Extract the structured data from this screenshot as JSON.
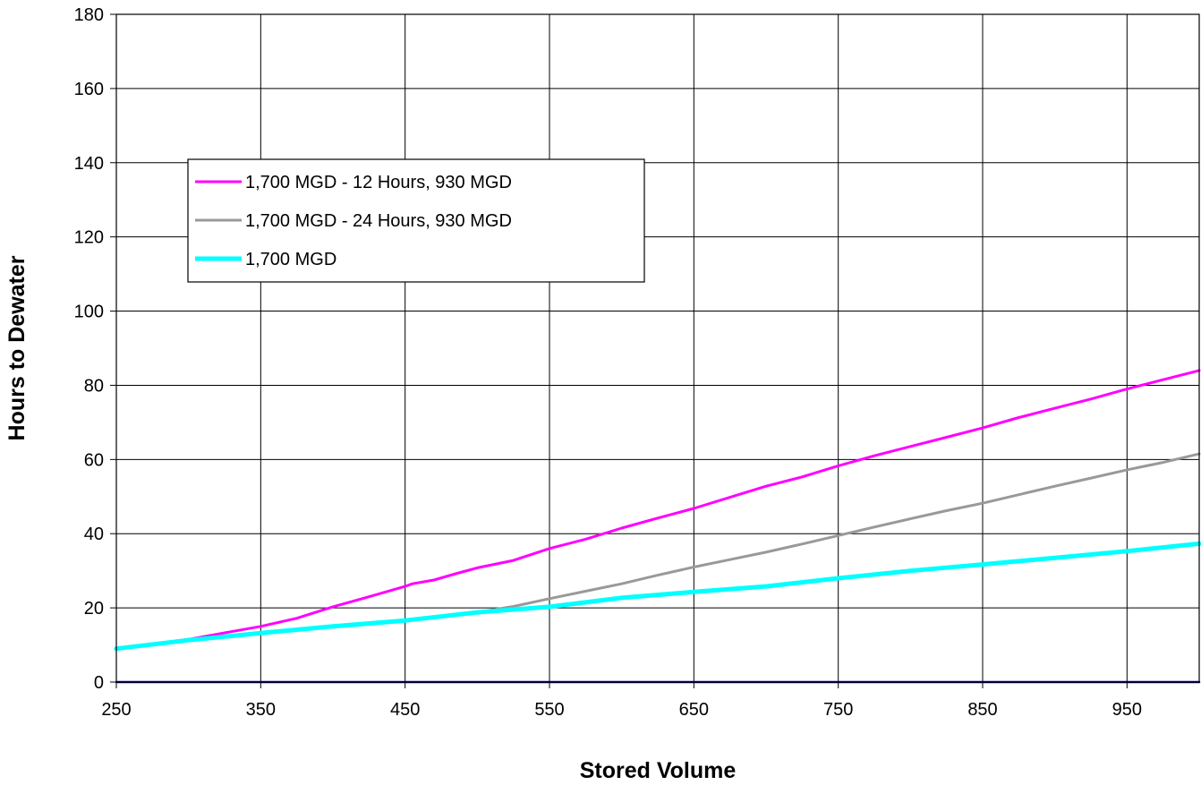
{
  "chart_data": {
    "type": "line",
    "title": "",
    "xlabel": "Stored Volume",
    "ylabel": "Hours to Dewater",
    "xlim": [
      250,
      1000
    ],
    "ylim": [
      0,
      180
    ],
    "x_ticks": [
      250,
      350,
      450,
      550,
      650,
      750,
      850,
      950
    ],
    "y_ticks": [
      0,
      20,
      40,
      60,
      80,
      100,
      120,
      140,
      160,
      180
    ],
    "x_tick_labels": [
      "250",
      "350",
      "450",
      "550",
      "650",
      "750",
      "850",
      "950"
    ],
    "y_tick_labels": [
      "0",
      "20",
      "40",
      "60",
      "80",
      "100",
      "120",
      "140",
      "160",
      "180"
    ],
    "grid": true,
    "legend_position": "upper-left",
    "series": [
      {
        "name": "1,700 MGD - 12 Hours, 930 MGD",
        "color": "#FF00FF",
        "x": [
          250,
          300,
          350,
          375,
          400,
          425,
          450,
          455,
          470,
          485,
          500,
          525,
          550,
          575,
          600,
          625,
          650,
          675,
          700,
          725,
          750,
          775,
          800,
          825,
          850,
          875,
          900,
          925,
          950,
          975,
          1000
        ],
        "y": [
          9,
          11.5,
          15,
          17.2,
          20.3,
          23,
          25.8,
          26.5,
          27.5,
          29.2,
          30.8,
          32.8,
          36,
          38.5,
          41.5,
          44.2,
          46.8,
          49.8,
          52.8,
          55.3,
          58.3,
          61,
          63.5,
          66,
          68.5,
          71.3,
          73.8,
          76.3,
          79,
          81.5,
          84
        ]
      },
      {
        "name": "1,700 MGD - 24 Hours, 930 MGD",
        "color": "#999999",
        "x": [
          250,
          300,
          350,
          400,
          450,
          475,
          500,
          525,
          550,
          575,
          600,
          625,
          650,
          675,
          700,
          725,
          750,
          775,
          800,
          825,
          850,
          875,
          900,
          925,
          950,
          975,
          1000
        ],
        "y": [
          9,
          11.5,
          13.2,
          15,
          16.7,
          17.5,
          18.8,
          20.4,
          22.5,
          24.5,
          26.5,
          28.8,
          31,
          33,
          35,
          37.2,
          39.5,
          41.8,
          44,
          46.2,
          48.2,
          50.5,
          52.8,
          55,
          57.2,
          59.2,
          61.5
        ]
      },
      {
        "name": "1,700 MGD",
        "color": "#00FFFF",
        "x": [
          250,
          300,
          350,
          400,
          450,
          500,
          550,
          600,
          650,
          700,
          750,
          800,
          850,
          900,
          950,
          1000
        ],
        "y": [
          9,
          11.3,
          13.2,
          15,
          16.6,
          18.8,
          20.3,
          22.7,
          24.3,
          25.8,
          28,
          30,
          31.7,
          33.5,
          35.3,
          37.3
        ]
      },
      {
        "name": "",
        "color": "#000080",
        "x": [
          250,
          1000
        ],
        "y": [
          0,
          0
        ]
      }
    ]
  }
}
